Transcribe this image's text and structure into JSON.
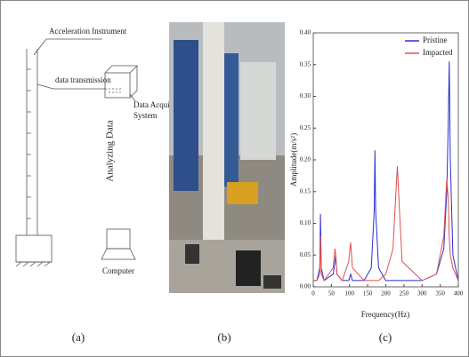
{
  "diagram": {
    "acceleration": "Acceleration Instrument",
    "transmission": "data transmission",
    "acquisition": [
      "Data Acquisition",
      "System"
    ],
    "analyzing": "Analyzing Data",
    "computer": "Computer"
  },
  "panel_labels": [
    "(a)",
    "(b)",
    "(c)"
  ],
  "chart_data": {
    "type": "line",
    "x_label": "Frequency(Hz)",
    "y_label": "Amplitude(m/s²)",
    "x": [
      0,
      10,
      18,
      20,
      22,
      30,
      55,
      60,
      62,
      65,
      80,
      98,
      103,
      108,
      140,
      160,
      168,
      170,
      172,
      180,
      200,
      220,
      228,
      232,
      236,
      245,
      300,
      340,
      360,
      368,
      372,
      375,
      378,
      385,
      400
    ],
    "series": [
      {
        "name": "Pristine",
        "color": "#2b2bd6",
        "values": [
          0.01,
          0.01,
          0.03,
          0.115,
          0.03,
          0.01,
          0.02,
          0.04,
          0.05,
          0.02,
          0.01,
          0.01,
          0.02,
          0.01,
          0.01,
          0.03,
          0.12,
          0.215,
          0.12,
          0.03,
          0.01,
          0.01,
          0.01,
          0.01,
          0.01,
          0.01,
          0.01,
          0.02,
          0.06,
          0.15,
          0.25,
          0.355,
          0.2,
          0.05,
          0.01
        ]
      },
      {
        "name": "Impacted",
        "color": "#e05050",
        "values": [
          0.01,
          0.01,
          0.02,
          0.08,
          0.02,
          0.01,
          0.03,
          0.06,
          0.05,
          0.02,
          0.01,
          0.04,
          0.07,
          0.03,
          0.01,
          0.01,
          0.01,
          0.01,
          0.01,
          0.01,
          0.02,
          0.06,
          0.15,
          0.19,
          0.14,
          0.04,
          0.01,
          0.02,
          0.08,
          0.17,
          0.14,
          0.08,
          0.05,
          0.03,
          0.01
        ]
      }
    ],
    "xlim": [
      0,
      400
    ],
    "xticks": [
      0,
      50,
      100,
      150,
      200,
      250,
      300,
      350,
      400
    ],
    "ylim": [
      0,
      0.4
    ],
    "yticks": [
      {
        "value": 0,
        "label": "0.00"
      },
      {
        "value": 0.05,
        "label": "0.05"
      },
      {
        "value": 0.1,
        "label": "0.10"
      },
      {
        "value": 0.15,
        "label": "0.15"
      },
      {
        "value": 0.2,
        "label": "0.20"
      },
      {
        "value": 0.25,
        "label": "0.25"
      },
      {
        "value": 0.3,
        "label": "0.30"
      },
      {
        "value": 0.35,
        "label": "0.35"
      },
      {
        "value": 0.4,
        "label": "0.40"
      }
    ],
    "legend": "upper right"
  }
}
